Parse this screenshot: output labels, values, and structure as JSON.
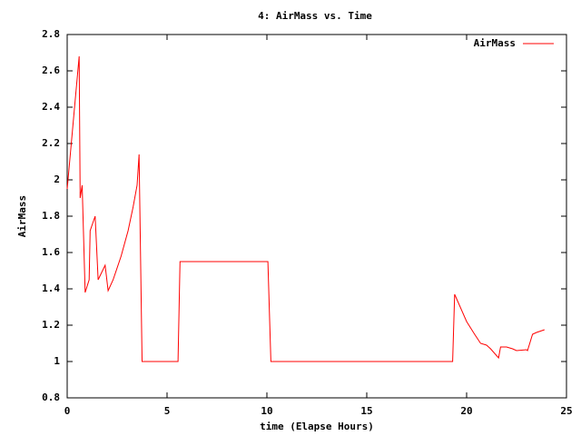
{
  "chart_data": {
    "type": "line",
    "title": "4: AirMass vs. Time",
    "x_label": "time (Elapse Hours)",
    "y_label": "AirMass",
    "x": [
      0,
      0.6,
      0.65,
      0.75,
      0.9,
      1.1,
      1.15,
      1.4,
      1.55,
      1.9,
      2.05,
      2.3,
      2.7,
      3.05,
      3.3,
      3.5,
      3.6,
      3.75,
      5.55,
      5.65,
      10.05,
      10.2,
      19.3,
      19.4,
      20,
      20.4,
      20.7,
      21,
      21.2,
      21.6,
      21.7,
      22,
      22.3,
      22.5,
      23,
      23.05,
      23.3,
      23.5,
      23.9
    ],
    "series": [
      {
        "name": "AirMass",
        "color": "#ff0000",
        "values": [
          1.95,
          2.68,
          1.9,
          1.97,
          1.38,
          1.45,
          1.72,
          1.8,
          1.45,
          1.53,
          1.39,
          1.45,
          1.58,
          1.72,
          1.85,
          1.97,
          2.14,
          1.0,
          1.0,
          1.55,
          1.55,
          1.0,
          1.0,
          1.37,
          1.22,
          1.15,
          1.1,
          1.09,
          1.07,
          1.02,
          1.08,
          1.08,
          1.07,
          1.06,
          1.065,
          1.06,
          1.15,
          1.16,
          1.175
        ]
      }
    ],
    "xlim": [
      0,
      25
    ],
    "xticks": [
      0,
      5,
      10,
      15,
      20,
      25
    ],
    "ylim": [
      0.8,
      2.8
    ],
    "yticks": [
      0.8,
      1,
      1.2,
      1.4,
      1.6,
      1.8,
      2,
      2.2,
      2.4,
      2.6,
      2.8
    ],
    "legend": "top-right"
  }
}
